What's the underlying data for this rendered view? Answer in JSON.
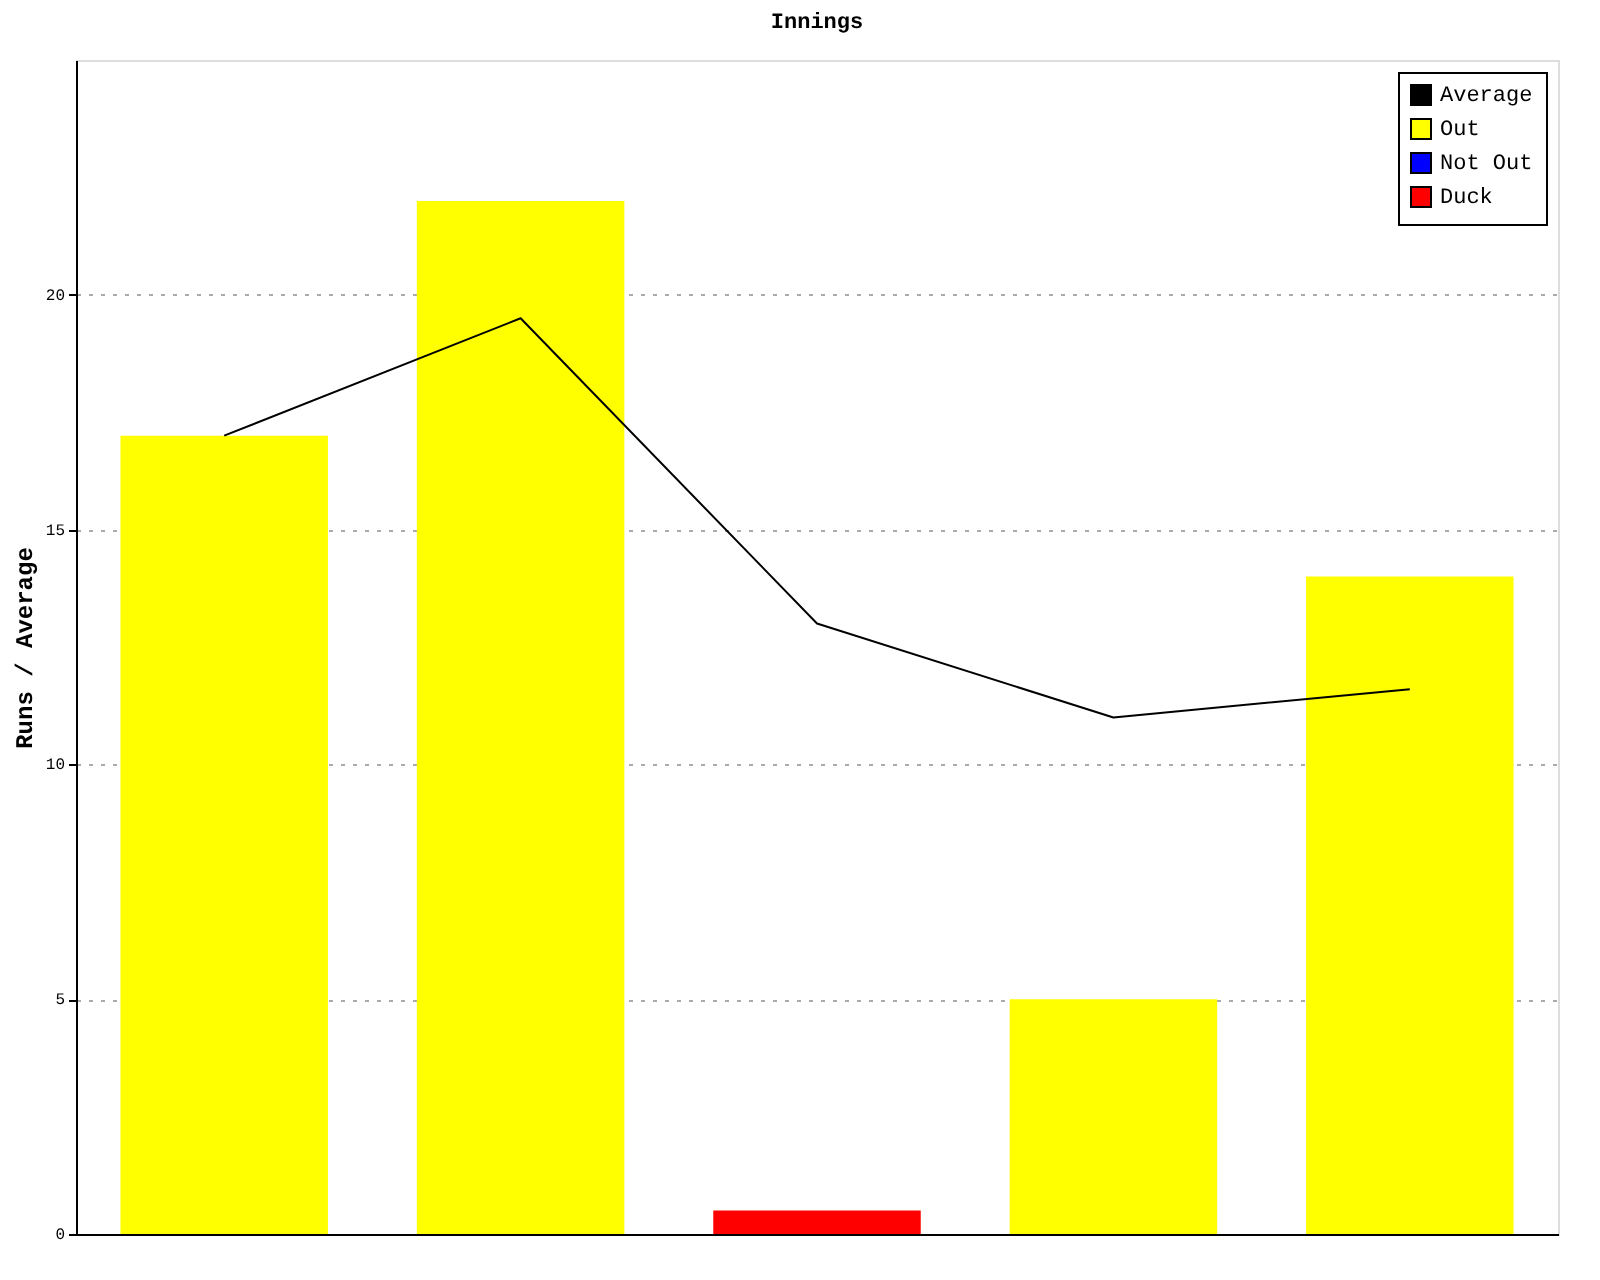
{
  "chart_data": {
    "type": "bar",
    "title": "Innings",
    "ylabel": "Runs / Average",
    "categories": [
      null,
      null,
      null,
      null,
      null
    ],
    "series": [
      {
        "name": "Average",
        "type": "line",
        "color": "#000000",
        "values": [
          17,
          19.5,
          13,
          11,
          11.6
        ]
      },
      {
        "name": "Out",
        "color": "#ffff00",
        "values": [
          17,
          22,
          null,
          5,
          14
        ]
      },
      {
        "name": "Not Out",
        "color": "#0000ff",
        "values": [
          null,
          null,
          null,
          null,
          null
        ]
      },
      {
        "name": "Duck",
        "color": "#ff0000",
        "values": [
          null,
          null,
          0.5,
          null,
          null
        ]
      }
    ],
    "ylim": [
      0,
      25
    ],
    "yticks": [
      0,
      5,
      10,
      15,
      20
    ],
    "grid": "y",
    "legend": "top right",
    "tick_labels": "y"
  }
}
